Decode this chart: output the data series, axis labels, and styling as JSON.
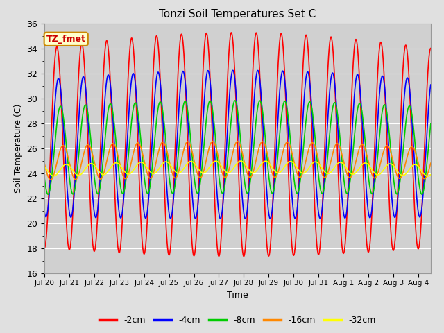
{
  "title": "Tonzi Soil Temperatures Set C",
  "xlabel": "Time",
  "ylabel": "Soil Temperature (C)",
  "ylim": [
    16,
    36
  ],
  "yticks": [
    16,
    18,
    20,
    22,
    24,
    26,
    28,
    30,
    32,
    34,
    36
  ],
  "fig_bg_color": "#e0e0e0",
  "plot_bg_color": "#d0d0d0",
  "legend_labels": [
    "-2cm",
    "-4cm",
    "-8cm",
    "-16cm",
    "-32cm"
  ],
  "series_colors": [
    "#ff0000",
    "#0000ff",
    "#00cc00",
    "#ff8800",
    "#ffff00"
  ],
  "annotation_text": "TZ_fmet",
  "annotation_bg": "#ffffcc",
  "annotation_border": "#cc8800",
  "xtick_labels": [
    "Jul 20",
    "Jul 21",
    "Jul 22",
    "Jul 23",
    "Jul 24",
    "Jul 25",
    "Jul 26",
    "Jul 27",
    "Jul 28",
    "Jul 29",
    "Jul 30",
    "Jul 31",
    "Aug 1",
    "Aug 2",
    "Aug 3",
    "Aug 4"
  ],
  "n_days": 15.5,
  "points_per_day": 96,
  "amplitudes": [
    8.0,
    5.5,
    3.5,
    1.3,
    0.45
  ],
  "phase_offsets_hours": [
    0.0,
    1.5,
    3.5,
    6.0,
    9.0
  ],
  "base_temps": [
    26.0,
    26.0,
    25.8,
    24.8,
    24.2
  ],
  "line_widths": [
    1.2,
    1.2,
    1.2,
    1.2,
    1.2
  ]
}
